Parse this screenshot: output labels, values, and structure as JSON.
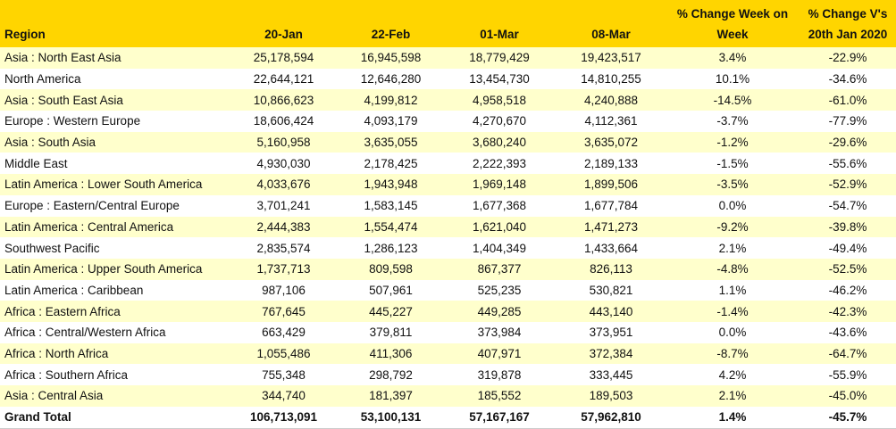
{
  "headers": [
    "Region",
    "20-Jan",
    "22-Feb",
    "01-Mar",
    "08-Mar",
    "% Change Week on Week",
    "% Change V's 20th Jan 2020"
  ],
  "rows": [
    [
      "Asia : North East Asia",
      "25,178,594",
      "16,945,598",
      "18,779,429",
      "19,423,517",
      "3.4%",
      "-22.9%"
    ],
    [
      "North America",
      "22,644,121",
      "12,646,280",
      "13,454,730",
      "14,810,255",
      "10.1%",
      "-34.6%"
    ],
    [
      "Asia : South East Asia",
      "10,866,623",
      "4,199,812",
      "4,958,518",
      "4,240,888",
      "-14.5%",
      "-61.0%"
    ],
    [
      "Europe : Western Europe",
      "18,606,424",
      "4,093,179",
      "4,270,670",
      "4,112,361",
      "-3.7%",
      "-77.9%"
    ],
    [
      "Asia : South Asia",
      "5,160,958",
      "3,635,055",
      "3,680,240",
      "3,635,072",
      "-1.2%",
      "-29.6%"
    ],
    [
      "Middle East",
      "4,930,030",
      "2,178,425",
      "2,222,393",
      "2,189,133",
      "-1.5%",
      "-55.6%"
    ],
    [
      "Latin America : Lower South America",
      "4,033,676",
      "1,943,948",
      "1,969,148",
      "1,899,506",
      "-3.5%",
      "-52.9%"
    ],
    [
      "Europe : Eastern/Central Europe",
      "3,701,241",
      "1,583,145",
      "1,677,368",
      "1,677,784",
      "0.0%",
      "-54.7%"
    ],
    [
      "Latin America : Central America",
      "2,444,383",
      "1,554,474",
      "1,621,040",
      "1,471,273",
      "-9.2%",
      "-39.8%"
    ],
    [
      "Southwest Pacific",
      "2,835,574",
      "1,286,123",
      "1,404,349",
      "1,433,664",
      "2.1%",
      "-49.4%"
    ],
    [
      "Latin America : Upper South America",
      "1,737,713",
      "809,598",
      "867,377",
      "826,113",
      "-4.8%",
      "-52.5%"
    ],
    [
      "Latin America : Caribbean",
      "987,106",
      "507,961",
      "525,235",
      "530,821",
      "1.1%",
      "-46.2%"
    ],
    [
      "Africa : Eastern Africa",
      "767,645",
      "445,227",
      "449,285",
      "443,140",
      "-1.4%",
      "-42.3%"
    ],
    [
      "Africa : Central/Western Africa",
      "663,429",
      "379,811",
      "373,984",
      "373,951",
      "0.0%",
      "-43.6%"
    ],
    [
      "Africa : North Africa",
      "1,055,486",
      "411,306",
      "407,971",
      "372,384",
      "-8.7%",
      "-64.7%"
    ],
    [
      "Africa : Southern Africa",
      "755,348",
      "298,792",
      "319,878",
      "333,445",
      "4.2%",
      "-55.9%"
    ],
    [
      "Asia : Central Asia",
      "344,740",
      "181,397",
      "185,552",
      "189,503",
      "2.1%",
      "-45.0%"
    ]
  ],
  "total": [
    "Grand Total",
    "106,713,091",
    "53,100,131",
    "57,167,167",
    "57,962,810",
    "1.4%",
    "-45.7%"
  ],
  "colors": {
    "header": "#FFD500",
    "alt_row": "#FFFFCC"
  }
}
